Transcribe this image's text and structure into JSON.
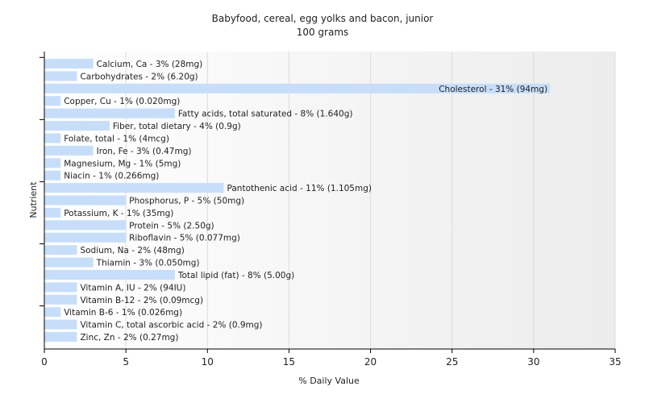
{
  "chart_data": {
    "type": "bar",
    "orientation": "horizontal",
    "title": "Babyfood, cereal, egg yolks and bacon, junior",
    "subtitle": "100 grams",
    "xlabel": "% Daily Value",
    "ylabel": "Nutrient",
    "xlim": [
      0,
      35
    ],
    "xticks": [
      0,
      5,
      10,
      15,
      20,
      25,
      30,
      35
    ],
    "grid": true,
    "bar_color": "#c6defa",
    "categories": [
      "Calcium, Ca",
      "Carbohydrates",
      "Cholesterol",
      "Copper, Cu",
      "Fatty acids, total saturated",
      "Fiber, total dietary",
      "Folate, total",
      "Iron, Fe",
      "Magnesium, Mg",
      "Niacin",
      "Pantothenic acid",
      "Phosphorus, P",
      "Potassium, K",
      "Protein",
      "Riboflavin",
      "Sodium, Na",
      "Thiamin",
      "Total lipid (fat)",
      "Vitamin A, IU",
      "Vitamin B-12",
      "Vitamin B-6",
      "Vitamin C, total ascorbic acid",
      "Zinc, Zn"
    ],
    "values": [
      3,
      2,
      31,
      1,
      8,
      4,
      1,
      3,
      1,
      1,
      11,
      5,
      1,
      5,
      5,
      2,
      3,
      8,
      2,
      2,
      1,
      2,
      2
    ],
    "labels": [
      "Calcium, Ca - 3% (28mg)",
      "Carbohydrates - 2% (6.20g)",
      "Cholesterol - 31% (94mg)",
      "Copper, Cu - 1% (0.020mg)",
      "Fatty acids, total saturated - 8% (1.640g)",
      "Fiber, total dietary - 4% (0.9g)",
      "Folate, total - 1% (4mcg)",
      "Iron, Fe - 3% (0.47mg)",
      "Magnesium, Mg - 1% (5mg)",
      "Niacin - 1% (0.266mg)",
      "Pantothenic acid - 11% (1.105mg)",
      "Phosphorus, P - 5% (50mg)",
      "Potassium, K - 1% (35mg)",
      "Protein - 5% (2.50g)",
      "Riboflavin - 5% (0.077mg)",
      "Sodium, Na - 2% (48mg)",
      "Thiamin - 3% (0.050mg)",
      "Total lipid (fat) - 8% (5.00g)",
      "Vitamin A, IU - 2% (94IU)",
      "Vitamin B-12 - 2% (0.09mcg)",
      "Vitamin B-6 - 1% (0.026mg)",
      "Vitamin C, total ascorbic acid - 2% (0.9mg)",
      "Zinc, Zn - 2% (0.27mg)"
    ]
  }
}
